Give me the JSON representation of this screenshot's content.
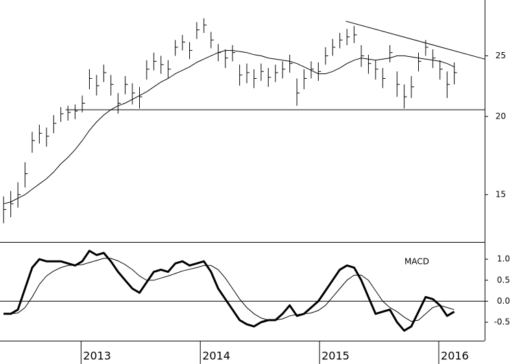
{
  "chart_data": [
    {
      "type": "ohlc",
      "log_scale": true,
      "color": "#000000",
      "x": [
        2012.35,
        2012.41,
        2012.47,
        2012.53,
        2012.59,
        2012.65,
        2012.71,
        2012.77,
        2012.83,
        2012.89,
        2012.95,
        2013.01,
        2013.07,
        2013.13,
        2013.19,
        2013.25,
        2013.31,
        2013.37,
        2013.43,
        2013.49,
        2013.55,
        2013.61,
        2013.67,
        2013.73,
        2013.79,
        2013.85,
        2013.91,
        2013.97,
        2014.03,
        2014.09,
        2014.15,
        2014.21,
        2014.27,
        2014.33,
        2014.39,
        2014.45,
        2014.51,
        2014.57,
        2014.63,
        2014.69,
        2014.75,
        2014.81,
        2014.87,
        2014.93,
        2014.99,
        2015.05,
        2015.11,
        2015.17,
        2015.23,
        2015.29,
        2015.35,
        2015.41,
        2015.47,
        2015.53,
        2015.59,
        2015.65,
        2015.71,
        2015.77,
        2015.83,
        2015.89,
        2015.95,
        2016.01,
        2016.07,
        2016.13
      ],
      "high": [
        14.9,
        15.2,
        15.7,
        16.9,
        18.9,
        19.4,
        19.2,
        20.1,
        20.7,
        20.8,
        20.9,
        21.6,
        23.8,
        23.3,
        24.2,
        23.3,
        21.8,
        23.2,
        22.6,
        22.3,
        24.6,
        25.3,
        25.0,
        24.6,
        26.5,
        27.0,
        26.3,
        28.3,
        28.7,
        27.3,
        26.1,
        25.6,
        26.0,
        24.2,
        24.3,
        23.8,
        24.3,
        23.9,
        24.2,
        24.5,
        25.1,
        23.0,
        23.8,
        24.5,
        24.4,
        25.8,
        26.6,
        27.2,
        27.6,
        27.9,
        26.0,
        25.1,
        24.6,
        23.9,
        26.0,
        23.6,
        22.5,
        23.2,
        25.3,
        26.5,
        25.6,
        24.6,
        23.6,
        24.4
      ],
      "low": [
        13.5,
        13.8,
        14.3,
        15.4,
        17.5,
        18.1,
        17.9,
        18.8,
        19.6,
        19.7,
        19.8,
        20.3,
        22.1,
        21.6,
        22.7,
        21.6,
        20.2,
        21.7,
        20.9,
        20.6,
        22.9,
        23.7,
        23.4,
        23.0,
        25.0,
        25.5,
        24.7,
        26.6,
        27.2,
        25.7,
        24.5,
        23.9,
        24.5,
        22.4,
        22.6,
        22.2,
        22.8,
        22.3,
        22.7,
        23.0,
        23.5,
        20.8,
        22.1,
        23.0,
        22.8,
        24.2,
        25.0,
        25.7,
        26.0,
        26.2,
        24.0,
        23.4,
        22.9,
        22.2,
        24.4,
        21.5,
        20.6,
        21.4,
        23.6,
        25.0,
        23.9,
        22.9,
        21.4,
        22.5
      ],
      "close": [
        14.2,
        14.5,
        15.0,
        16.2,
        18.3,
        18.8,
        18.6,
        19.5,
        20.2,
        20.3,
        20.4,
        21.0,
        23.0,
        22.4,
        23.5,
        22.5,
        21.0,
        22.5,
        21.8,
        21.5,
        23.8,
        24.5,
        24.2,
        23.8,
        25.8,
        26.3,
        25.5,
        27.5,
        28.0,
        26.5,
        25.3,
        24.8,
        25.3,
        23.3,
        23.5,
        23.0,
        23.6,
        23.1,
        23.5,
        23.8,
        24.3,
        21.8,
        23.0,
        23.8,
        23.6,
        25.0,
        25.8,
        26.5,
        26.8,
        27.0,
        25.0,
        24.3,
        23.8,
        23.0,
        25.3,
        22.5,
        21.5,
        22.3,
        24.5,
        25.8,
        24.8,
        23.8,
        22.5,
        23.5
      ],
      "ma": [
        14.5,
        14.6,
        14.8,
        15.0,
        15.3,
        15.6,
        15.9,
        16.3,
        16.8,
        17.2,
        17.7,
        18.3,
        19.0,
        19.6,
        20.1,
        20.5,
        20.8,
        21.0,
        21.3,
        21.6,
        21.9,
        22.3,
        22.7,
        23.0,
        23.4,
        23.7,
        24.0,
        24.4,
        24.7,
        25.0,
        25.3,
        25.5,
        25.5,
        25.4,
        25.3,
        25.1,
        25.0,
        24.8,
        24.7,
        24.6,
        24.5,
        24.3,
        24.0,
        23.7,
        23.4,
        23.4,
        23.6,
        23.9,
        24.3,
        24.6,
        24.8,
        24.7,
        24.6,
        24.7,
        24.8,
        25.0,
        25.0,
        24.9,
        24.8,
        24.7,
        24.6,
        24.5,
        24.3,
        24.0
      ],
      "lines": [
        {
          "x": [
            2012.87,
            2016.385
          ],
          "values": [
            20.5,
            20.5
          ]
        },
        {
          "x": [
            2015.22,
            2016.385
          ],
          "values": [
            28.4,
            24.7
          ]
        }
      ],
      "ylim": [
        12.6,
        30.7
      ],
      "yticks": [
        15,
        20,
        25
      ]
    },
    {
      "type": "macd",
      "title": "MACD",
      "color": "#000000",
      "x": [
        2012.35,
        2012.41,
        2012.47,
        2012.53,
        2012.59,
        2012.65,
        2012.71,
        2012.77,
        2012.83,
        2012.89,
        2012.95,
        2013.01,
        2013.07,
        2013.13,
        2013.19,
        2013.25,
        2013.31,
        2013.37,
        2013.43,
        2013.49,
        2013.55,
        2013.61,
        2013.67,
        2013.73,
        2013.79,
        2013.85,
        2013.91,
        2013.97,
        2014.03,
        2014.09,
        2014.15,
        2014.21,
        2014.27,
        2014.33,
        2014.39,
        2014.45,
        2014.51,
        2014.57,
        2014.63,
        2014.69,
        2014.75,
        2014.81,
        2014.87,
        2014.93,
        2014.99,
        2015.05,
        2015.11,
        2015.17,
        2015.23,
        2015.29,
        2015.35,
        2015.41,
        2015.47,
        2015.53,
        2015.59,
        2015.65,
        2015.71,
        2015.77,
        2015.83,
        2015.89,
        2015.95,
        2016.01,
        2016.07,
        2016.13
      ],
      "macd": [
        -0.3,
        -0.3,
        -0.2,
        0.3,
        0.8,
        1.0,
        0.95,
        0.95,
        0.95,
        0.9,
        0.85,
        0.95,
        1.2,
        1.1,
        1.15,
        0.95,
        0.7,
        0.5,
        0.3,
        0.2,
        0.45,
        0.7,
        0.75,
        0.7,
        0.9,
        0.95,
        0.85,
        0.9,
        0.95,
        0.7,
        0.3,
        0.05,
        -0.2,
        -0.45,
        -0.55,
        -0.6,
        -0.5,
        -0.45,
        -0.45,
        -0.3,
        -0.1,
        -0.35,
        -0.3,
        -0.15,
        0.0,
        0.25,
        0.5,
        0.75,
        0.85,
        0.8,
        0.5,
        0.1,
        -0.3,
        -0.25,
        -0.2,
        -0.5,
        -0.7,
        -0.6,
        -0.25,
        0.1,
        0.05,
        -0.1,
        -0.35,
        -0.25
      ],
      "signal": [
        -0.3,
        -0.3,
        -0.28,
        -0.15,
        0.1,
        0.4,
        0.6,
        0.72,
        0.8,
        0.85,
        0.86,
        0.87,
        0.92,
        0.97,
        1.02,
        1.02,
        0.96,
        0.87,
        0.75,
        0.6,
        0.5,
        0.5,
        0.55,
        0.6,
        0.66,
        0.72,
        0.76,
        0.8,
        0.85,
        0.85,
        0.75,
        0.55,
        0.3,
        0.05,
        -0.15,
        -0.3,
        -0.4,
        -0.45,
        -0.45,
        -0.42,
        -0.35,
        -0.32,
        -0.3,
        -0.28,
        -0.22,
        -0.1,
        0.1,
        0.3,
        0.5,
        0.62,
        0.62,
        0.5,
        0.25,
        0.0,
        -0.15,
        -0.25,
        -0.38,
        -0.48,
        -0.45,
        -0.3,
        -0.15,
        -0.1,
        -0.15,
        -0.2
      ],
      "ylim": [
        -0.94,
        1.41
      ],
      "yticks": [
        {
          "value": 1.0,
          "label": "1.0"
        },
        {
          "value": 0.5,
          "label": "0.5"
        },
        {
          "value": 0.0,
          "label": "0.0"
        },
        {
          "value": -0.5,
          "label": "-0.5"
        }
      ],
      "xlim": [
        2012.32,
        2016.385
      ],
      "xticks": [
        2013,
        2014,
        2015,
        2016
      ]
    }
  ]
}
